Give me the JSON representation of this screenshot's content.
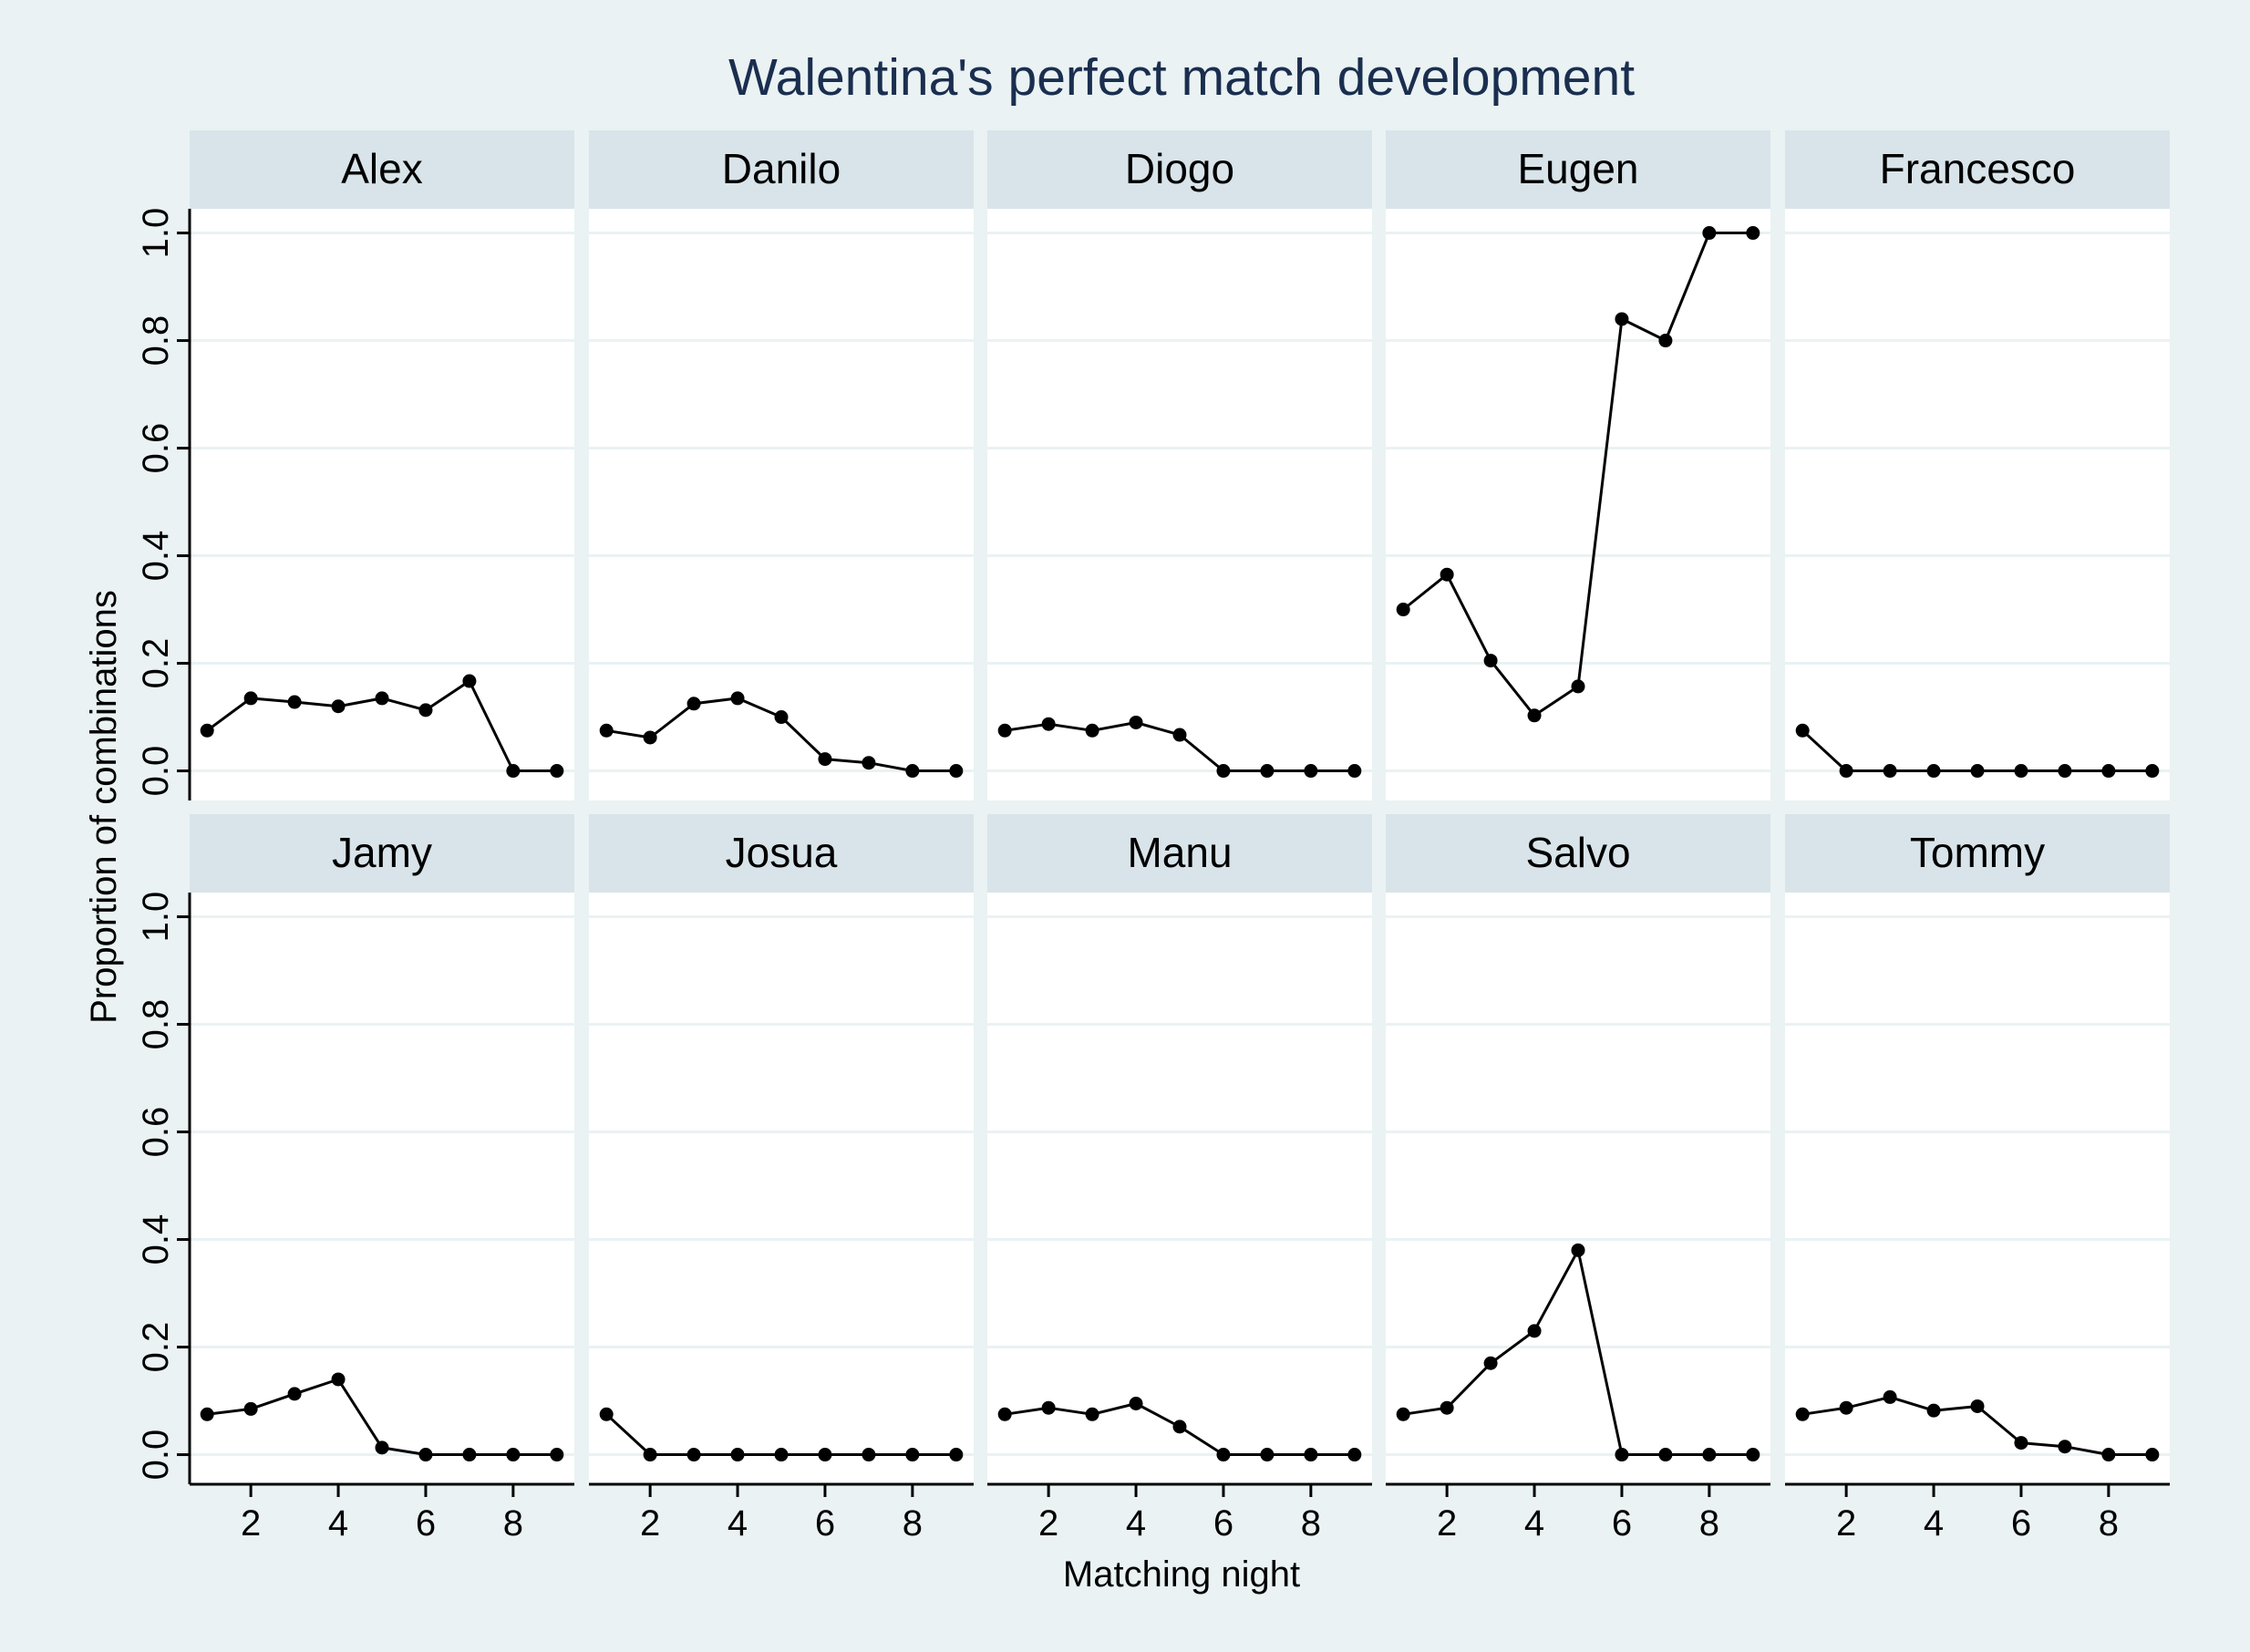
{
  "chart_data": {
    "type": "line",
    "title": "Walentina's perfect match development",
    "xlabel": "Matching night",
    "ylabel": "Proportion of combinations",
    "x": [
      1,
      2,
      3,
      4,
      5,
      6,
      7,
      8,
      9
    ],
    "xticks": [
      "2",
      "4",
      "6",
      "8"
    ],
    "xtick_values": [
      2,
      4,
      6,
      8
    ],
    "xlim": [
      0.6,
      9.4
    ],
    "yticks": [
      "0.0",
      "0.2",
      "0.4",
      "0.6",
      "0.8",
      "1.0"
    ],
    "ytick_values": [
      0,
      0.2,
      0.4,
      0.6,
      0.8,
      1.0
    ],
    "ylim": [
      -0.055,
      1.045
    ],
    "grid": true,
    "legend": "none",
    "colors": {
      "background": "#eaf2f3",
      "panel": "#ffffff",
      "strip": "#d8e4e9",
      "gridline": "#eaf2f3",
      "line": "#000000",
      "title": "#1a2e4f"
    },
    "panels": [
      {
        "name": "Alex",
        "values": [
          0.075,
          0.135,
          0.128,
          0.12,
          0.135,
          0.113,
          0.167,
          0.0,
          0.0
        ]
      },
      {
        "name": "Danilo",
        "values": [
          0.075,
          0.062,
          0.125,
          0.135,
          0.1,
          0.022,
          0.015,
          0.0,
          0.0
        ]
      },
      {
        "name": "Diogo",
        "values": [
          0.075,
          0.087,
          0.075,
          0.09,
          0.067,
          0.0,
          0.0,
          0.0,
          0.0
        ]
      },
      {
        "name": "Eugen",
        "values": [
          0.3,
          0.365,
          0.205,
          0.103,
          0.157,
          0.84,
          0.8,
          1.0,
          1.0
        ]
      },
      {
        "name": "Francesco",
        "values": [
          0.075,
          0.0,
          0.0,
          0.0,
          0.0,
          0.0,
          0.0,
          0.0,
          0.0
        ]
      },
      {
        "name": "Jamy",
        "values": [
          0.075,
          0.085,
          0.113,
          0.14,
          0.013,
          0.0,
          0.0,
          0.0,
          0.0
        ]
      },
      {
        "name": "Josua",
        "values": [
          0.075,
          0.0,
          0.0,
          0.0,
          0.0,
          0.0,
          0.0,
          0.0,
          0.0
        ]
      },
      {
        "name": "Manu",
        "values": [
          0.075,
          0.087,
          0.075,
          0.095,
          0.052,
          0.0,
          0.0,
          0.0,
          0.0
        ]
      },
      {
        "name": "Salvo",
        "values": [
          0.075,
          0.087,
          0.17,
          0.23,
          0.38,
          0.0,
          0.0,
          0.0,
          0.0
        ]
      },
      {
        "name": "Tommy",
        "values": [
          0.075,
          0.087,
          0.107,
          0.082,
          0.09,
          0.022,
          0.015,
          0.0,
          0.0
        ]
      }
    ]
  }
}
